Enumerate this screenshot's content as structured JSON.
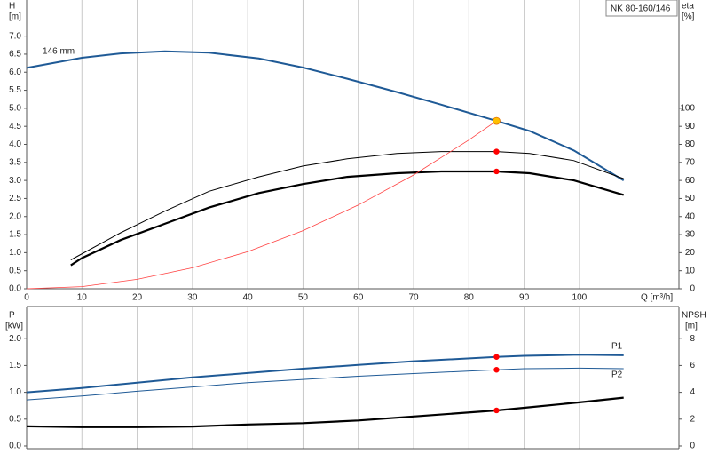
{
  "chart_data": [
    {
      "type": "line",
      "xlabel": "Q [m³/h]",
      "ylabel": "H",
      "yunit": "[m]",
      "y2label": "eta",
      "y2unit": "[%]",
      "badge": "NK 80-160/146",
      "xlim": [
        0,
        118
      ],
      "xticks": [
        0,
        10,
        20,
        30,
        40,
        50,
        60,
        70,
        80,
        90,
        100
      ],
      "ylim": [
        0,
        8
      ],
      "yticks": [
        {
          "value": 0,
          "label": "0.0"
        },
        {
          "value": 0.5,
          "label": "0.5"
        },
        {
          "value": 1,
          "label": "1.0"
        },
        {
          "value": 1.5,
          "label": "1.5"
        },
        {
          "value": 2,
          "label": "2.0"
        },
        {
          "value": 2.5,
          "label": "2.5"
        },
        {
          "value": 3,
          "label": "3.0"
        },
        {
          "value": 3.5,
          "label": "3.5"
        },
        {
          "value": 4,
          "label": "4.0"
        },
        {
          "value": 4.5,
          "label": "4.5"
        },
        {
          "value": 5,
          "label": "5.0"
        },
        {
          "value": 5.5,
          "label": "5.5"
        },
        {
          "value": 6,
          "label": "6.0"
        },
        {
          "value": 6.5,
          "label": "6.5"
        },
        {
          "value": 7,
          "label": "7.0"
        }
      ],
      "y2lim": [
        0,
        160
      ],
      "y2ticks": [
        0,
        10,
        20,
        30,
        40,
        50,
        60,
        70,
        80,
        90,
        100
      ],
      "grid": "x",
      "series": [
        {
          "name": "146 mm",
          "color": "#1f5a96",
          "axis": "y",
          "width": 2,
          "x": [
            0,
            10,
            17,
            25,
            33,
            42,
            50,
            58,
            67,
            75,
            85,
            91,
            99,
            108
          ],
          "values": [
            6.12,
            6.4,
            6.52,
            6.58,
            6.54,
            6.38,
            6.13,
            5.82,
            5.45,
            5.1,
            4.65,
            4.37,
            3.83,
            3.0
          ]
        },
        {
          "color": "#000000",
          "axis": "y2",
          "width": 1,
          "x": [
            8,
            17,
            25,
            33,
            42,
            50,
            58,
            67,
            75,
            85,
            91,
            99,
            108
          ],
          "values": [
            16,
            31,
            43,
            54,
            62,
            68,
            72,
            75,
            76,
            76,
            75,
            71,
            61
          ]
        },
        {
          "color": "#000000",
          "axis": "y2",
          "width": 2.2,
          "x": [
            8,
            10,
            17,
            25,
            33,
            42,
            50,
            58,
            67,
            75,
            85,
            91,
            99,
            108
          ],
          "values": [
            13,
            17,
            27,
            36,
            45,
            53,
            58,
            62,
            64,
            65,
            65,
            64,
            60,
            52
          ]
        },
        {
          "color": "#ff4040",
          "axis": "y",
          "width": 0.8,
          "x": [
            0,
            10,
            20,
            30,
            40,
            50,
            60,
            70,
            80,
            85
          ],
          "values": [
            0,
            0.06,
            0.26,
            0.58,
            1.03,
            1.61,
            2.32,
            3.15,
            4.12,
            4.65
          ]
        }
      ],
      "points": [
        {
          "x": 85,
          "y": 4.65,
          "axis": "y",
          "color": "#ffc000"
        },
        {
          "x": 85,
          "y": 76,
          "axis": "y2",
          "color": "#ff0000"
        },
        {
          "x": 85,
          "y": 65,
          "axis": "y2",
          "color": "#ff0000"
        }
      ]
    },
    {
      "type": "line",
      "ylabel": "P",
      "yunit": "[kW]",
      "y2label": "NPSH",
      "y2unit": "[m]",
      "xlim": [
        0,
        118
      ],
      "xticks": [
        0,
        10,
        20,
        30,
        40,
        50,
        60,
        70,
        80,
        90,
        100
      ],
      "ylim": [
        -0.05,
        2.6
      ],
      "yticks": [
        {
          "value": 0,
          "label": "0.0"
        },
        {
          "value": 0.5,
          "label": "0.5"
        },
        {
          "value": 1,
          "label": "1.0"
        },
        {
          "value": 1.5,
          "label": "1.5"
        },
        {
          "value": 2,
          "label": "2.0"
        }
      ],
      "y2lim": [
        -0.2,
        10.4
      ],
      "y2ticks": [
        0,
        2,
        4,
        6,
        8
      ],
      "grid": "x",
      "series": [
        {
          "name": "P1",
          "color": "#1f5a96",
          "axis": "y",
          "width": 2,
          "x": [
            0,
            10,
            20,
            30,
            40,
            50,
            60,
            70,
            85,
            90,
            100,
            108
          ],
          "values": [
            1.0,
            1.08,
            1.18,
            1.28,
            1.36,
            1.44,
            1.51,
            1.58,
            1.66,
            1.68,
            1.7,
            1.69
          ]
        },
        {
          "name": "P2",
          "color": "#1f5a96",
          "axis": "y",
          "width": 1,
          "x": [
            0,
            10,
            20,
            30,
            40,
            50,
            60,
            70,
            85,
            90,
            100,
            108
          ],
          "values": [
            0.86,
            0.93,
            1.02,
            1.1,
            1.18,
            1.24,
            1.3,
            1.35,
            1.42,
            1.44,
            1.45,
            1.44
          ]
        },
        {
          "color": "#000000",
          "axis": "y2",
          "width": 2.2,
          "x": [
            0,
            10,
            20,
            30,
            40,
            50,
            60,
            70,
            85,
            90,
            100,
            108
          ],
          "values": [
            1.46,
            1.4,
            1.4,
            1.45,
            1.6,
            1.7,
            1.9,
            2.2,
            2.65,
            2.85,
            3.25,
            3.6
          ]
        }
      ],
      "points": [
        {
          "x": 85,
          "y": 1.66,
          "axis": "y",
          "color": "#ff0000"
        },
        {
          "x": 85,
          "y": 1.42,
          "axis": "y",
          "color": "#ff0000"
        },
        {
          "x": 85,
          "y": 2.65,
          "axis": "y2",
          "color": "#ff0000"
        }
      ]
    }
  ]
}
